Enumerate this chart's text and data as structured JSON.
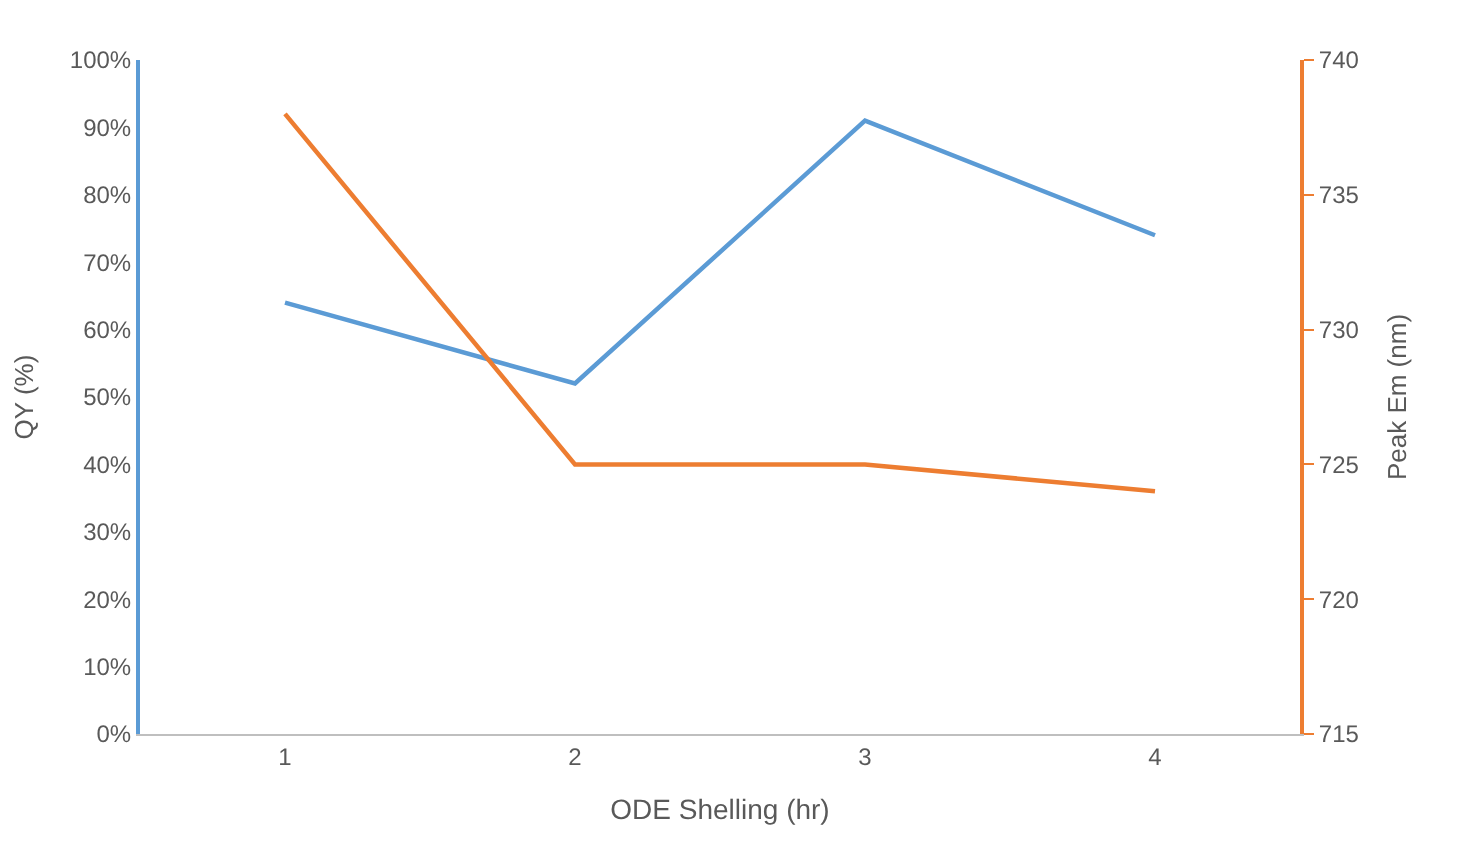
{
  "chart_data": {
    "type": "line",
    "xlabel": "ODE Shelling (hr)",
    "ylabel": "QY (%)",
    "y2label": "Peak Em (nm)",
    "categories": [
      "1",
      "2",
      "3",
      "4"
    ],
    "series": [
      {
        "color": "#5b9bd5",
        "values": [
          64,
          52,
          91,
          74
        ]
      },
      {
        "color": "#ed7d31",
        "values": [
          738,
          725,
          725,
          724
        ],
        "axis": "y2"
      }
    ],
    "ylim": [
      0,
      100
    ],
    "yticks": [
      {
        "value": 0,
        "label": "0%"
      },
      {
        "value": 10,
        "label": "10%"
      },
      {
        "value": 20,
        "label": "20%"
      },
      {
        "value": 30,
        "label": "30%"
      },
      {
        "value": 40,
        "label": "40%"
      },
      {
        "value": 50,
        "label": "50%"
      },
      {
        "value": 60,
        "label": "60%"
      },
      {
        "value": 70,
        "label": "70%"
      },
      {
        "value": 80,
        "label": "80%"
      },
      {
        "value": 90,
        "label": "90%"
      },
      {
        "value": 100,
        "label": "100%"
      }
    ],
    "y2lim": [
      715,
      740
    ],
    "y2ticks": [
      715,
      720,
      725,
      730,
      735,
      740
    ],
    "marker": "none",
    "line_style": "solid"
  }
}
